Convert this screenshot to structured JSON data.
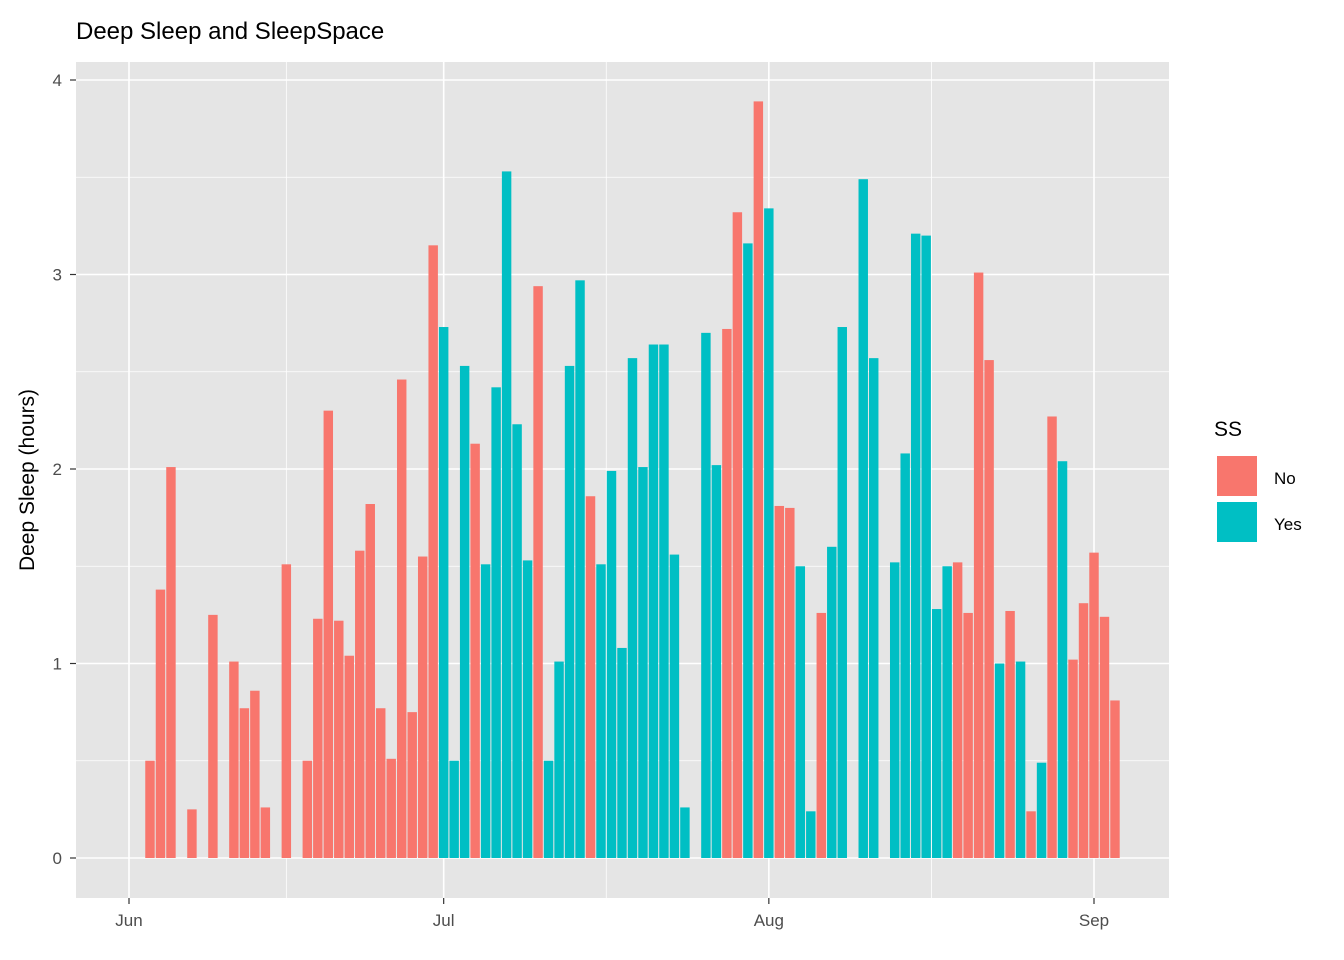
{
  "chart_data": {
    "type": "bar",
    "title": "Deep Sleep and SleepSpace",
    "xlabel": "",
    "ylabel": "Deep Sleep (hours)",
    "ylim": [
      0,
      4
    ],
    "y_ticks": [
      "0",
      "1",
      "2",
      "3",
      "4"
    ],
    "x_ticks": [
      {
        "date": "06-01",
        "label": "Jun"
      },
      {
        "date": "07-01",
        "label": "Jul"
      },
      {
        "date": "08-01",
        "label": "Aug"
      },
      {
        "date": "09-01",
        "label": "Sep"
      }
    ],
    "grid": true,
    "legend": {
      "title": "SS",
      "position": "right",
      "entries": [
        {
          "label": "No",
          "color": "#F8766D"
        },
        {
          "label": "Yes",
          "color": "#00BFC4"
        }
      ]
    },
    "fields": [
      "date",
      "deep_sleep_hours",
      "SS"
    ],
    "points": [
      [
        "06-03",
        0.5,
        "No"
      ],
      [
        "06-04",
        1.38,
        "No"
      ],
      [
        "06-05",
        2.01,
        "No"
      ],
      [
        "06-07",
        0.25,
        "No"
      ],
      [
        "06-09",
        1.25,
        "No"
      ],
      [
        "06-11",
        1.01,
        "No"
      ],
      [
        "06-12",
        0.77,
        "No"
      ],
      [
        "06-13",
        0.86,
        "No"
      ],
      [
        "06-14",
        0.26,
        "No"
      ],
      [
        "06-16",
        1.51,
        "No"
      ],
      [
        "06-18",
        0.5,
        "No"
      ],
      [
        "06-19",
        1.23,
        "No"
      ],
      [
        "06-20",
        2.3,
        "No"
      ],
      [
        "06-21",
        1.22,
        "No"
      ],
      [
        "06-22",
        1.04,
        "No"
      ],
      [
        "06-23",
        1.58,
        "No"
      ],
      [
        "06-24",
        1.82,
        "No"
      ],
      [
        "06-25",
        0.77,
        "No"
      ],
      [
        "06-26",
        0.51,
        "No"
      ],
      [
        "06-27",
        2.46,
        "No"
      ],
      [
        "06-28",
        0.75,
        "No"
      ],
      [
        "06-29",
        1.55,
        "No"
      ],
      [
        "06-30",
        3.15,
        "No"
      ],
      [
        "07-01",
        2.73,
        "Yes"
      ],
      [
        "07-02",
        0.5,
        "Yes"
      ],
      [
        "07-03",
        2.53,
        "Yes"
      ],
      [
        "07-04",
        2.13,
        "No"
      ],
      [
        "07-05",
        1.51,
        "Yes"
      ],
      [
        "07-06",
        2.42,
        "Yes"
      ],
      [
        "07-07",
        3.53,
        "Yes"
      ],
      [
        "07-08",
        2.23,
        "Yes"
      ],
      [
        "07-09",
        1.53,
        "Yes"
      ],
      [
        "07-10",
        2.94,
        "No"
      ],
      [
        "07-11",
        0.5,
        "Yes"
      ],
      [
        "07-12",
        1.01,
        "Yes"
      ],
      [
        "07-13",
        2.53,
        "Yes"
      ],
      [
        "07-14",
        2.97,
        "Yes"
      ],
      [
        "07-15",
        1.86,
        "No"
      ],
      [
        "07-16",
        1.51,
        "Yes"
      ],
      [
        "07-17",
        1.99,
        "Yes"
      ],
      [
        "07-18",
        1.08,
        "Yes"
      ],
      [
        "07-19",
        2.57,
        "Yes"
      ],
      [
        "07-20",
        2.01,
        "Yes"
      ],
      [
        "07-21",
        2.64,
        "Yes"
      ],
      [
        "07-22",
        2.64,
        "Yes"
      ],
      [
        "07-23",
        1.56,
        "Yes"
      ],
      [
        "07-24",
        0.26,
        "Yes"
      ],
      [
        "07-26",
        2.7,
        "Yes"
      ],
      [
        "07-27",
        2.02,
        "Yes"
      ],
      [
        "07-28",
        2.72,
        "No"
      ],
      [
        "07-29",
        3.32,
        "No"
      ],
      [
        "07-30",
        3.16,
        "Yes"
      ],
      [
        "07-31",
        3.89,
        "No"
      ],
      [
        "08-01",
        3.34,
        "Yes"
      ],
      [
        "08-02",
        1.81,
        "No"
      ],
      [
        "08-03",
        1.8,
        "No"
      ],
      [
        "08-04",
        1.5,
        "Yes"
      ],
      [
        "08-05",
        0.24,
        "Yes"
      ],
      [
        "08-06",
        1.26,
        "No"
      ],
      [
        "08-07",
        1.6,
        "Yes"
      ],
      [
        "08-08",
        2.73,
        "Yes"
      ],
      [
        "08-10",
        3.49,
        "Yes"
      ],
      [
        "08-11",
        2.57,
        "Yes"
      ],
      [
        "08-13",
        1.52,
        "Yes"
      ],
      [
        "08-14",
        2.08,
        "Yes"
      ],
      [
        "08-15",
        3.21,
        "Yes"
      ],
      [
        "08-16",
        3.2,
        "Yes"
      ],
      [
        "08-17",
        1.28,
        "Yes"
      ],
      [
        "08-18",
        1.5,
        "Yes"
      ],
      [
        "08-19",
        1.52,
        "No"
      ],
      [
        "08-20",
        1.26,
        "No"
      ],
      [
        "08-21",
        3.01,
        "No"
      ],
      [
        "08-22",
        2.56,
        "No"
      ],
      [
        "08-23",
        1.0,
        "Yes"
      ],
      [
        "08-24",
        1.27,
        "No"
      ],
      [
        "08-25",
        1.01,
        "Yes"
      ],
      [
        "08-26",
        0.24,
        "No"
      ],
      [
        "08-27",
        0.49,
        "Yes"
      ],
      [
        "08-28",
        2.27,
        "No"
      ],
      [
        "08-29",
        2.04,
        "Yes"
      ],
      [
        "08-30",
        1.02,
        "No"
      ],
      [
        "08-31",
        1.31,
        "No"
      ],
      [
        "09-01",
        1.57,
        "No"
      ],
      [
        "09-02",
        1.24,
        "No"
      ],
      [
        "09-03",
        0.81,
        "No"
      ]
    ]
  }
}
